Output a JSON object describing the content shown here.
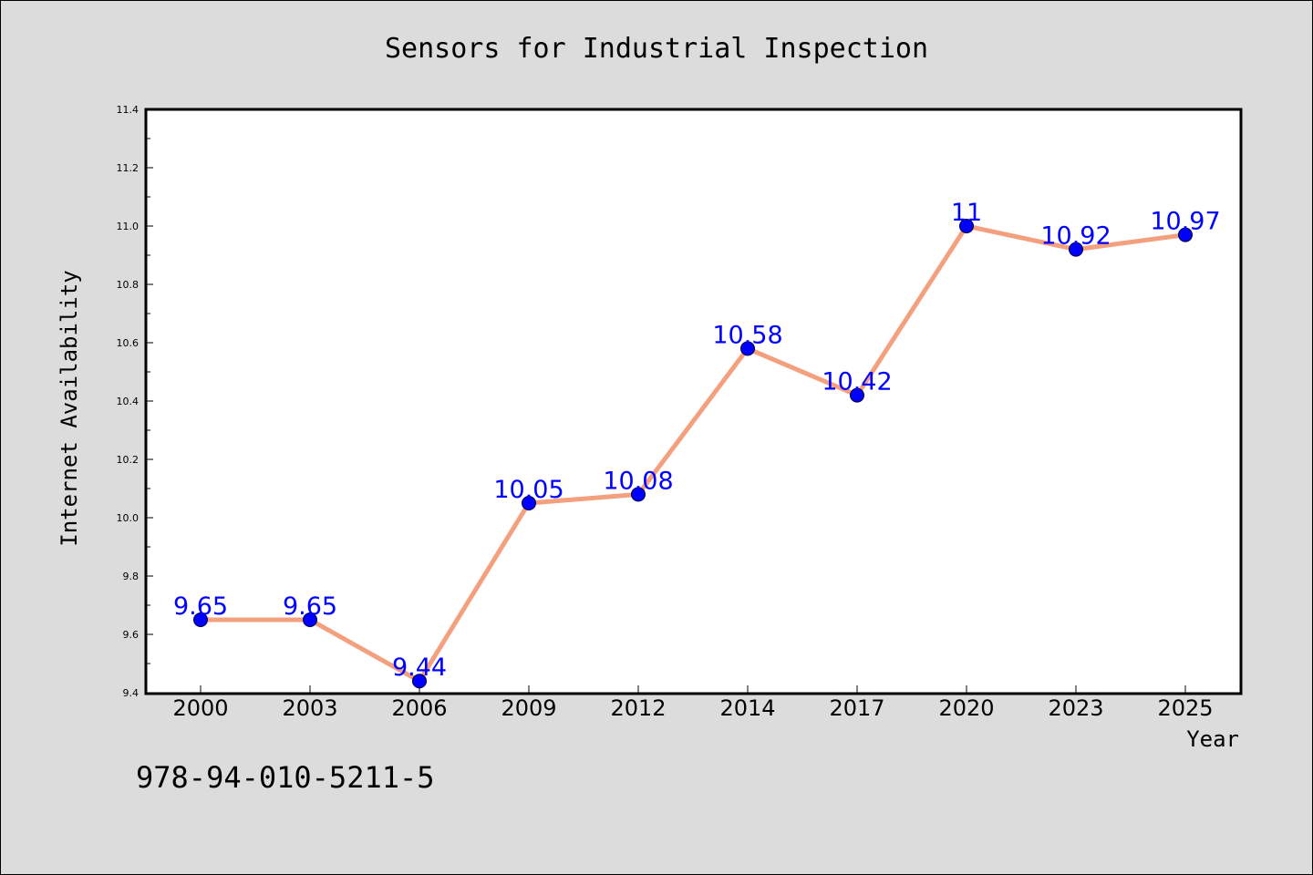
{
  "chart_data": {
    "type": "line",
    "title": "Sensors for Industrial Inspection",
    "xlabel": "Year",
    "ylabel": "Internet Availability",
    "categories": [
      "2000",
      "2003",
      "2006",
      "2009",
      "2012",
      "2014",
      "2017",
      "2020",
      "2023",
      "2025"
    ],
    "values": [
      9.65,
      9.65,
      9.44,
      10.05,
      10.08,
      10.58,
      10.42,
      11,
      10.92,
      10.97
    ],
    "data_labels": [
      "9.65",
      "9.65",
      "9.44",
      "10.05",
      "10.08",
      "10.58",
      "10.42",
      "11",
      "10.92",
      "10.97"
    ],
    "ylim": [
      9.4,
      11.4
    ],
    "yticks": [
      "9.4",
      "9.6",
      "9.8",
      "10.0",
      "10.2",
      "10.4",
      "10.6",
      "10.8",
      "11.0",
      "11.2",
      "11.4"
    ],
    "grid": false,
    "legend": "none",
    "colors": {
      "line": "#f4a07e",
      "marker": "#0000ff",
      "label": "#0000ff",
      "background": "#dcdcdc",
      "plot_background": "#ffffff"
    }
  },
  "annotation": "978-94-010-5211-5"
}
